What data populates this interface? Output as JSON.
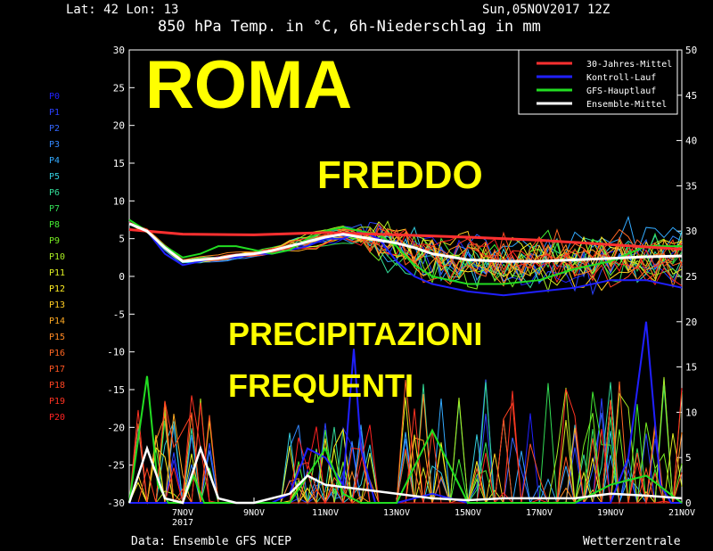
{
  "header": {
    "coords": "Lat: 42 Lon: 13",
    "title": "850 hPa Temp. in °C, 6h-Niederschlag in mm",
    "run": "Sun,05NOV2017 12Z"
  },
  "overlay": {
    "city": "ROMA",
    "cold": "FREDDO",
    "precip_line1": "PRECIPITAZIONI",
    "precip_line2": "FREQUENTI"
  },
  "footer": {
    "source": "Data: Ensemble GFS NCEP",
    "brand": "Wetterzentrale"
  },
  "members": [
    {
      "label": "P0",
      "color": "#2020ff"
    },
    {
      "label": "P1",
      "color": "#2a40ff"
    },
    {
      "label": "P2",
      "color": "#3366ff"
    },
    {
      "label": "P3",
      "color": "#3388ff"
    },
    {
      "label": "P4",
      "color": "#33aaff"
    },
    {
      "label": "P5",
      "color": "#33ccdd"
    },
    {
      "label": "P6",
      "color": "#33dd99"
    },
    {
      "label": "P7",
      "color": "#33dd55"
    },
    {
      "label": "P8",
      "color": "#44ee33"
    },
    {
      "label": "P9",
      "color": "#77ee22"
    },
    {
      "label": "P10",
      "color": "#aaee22"
    },
    {
      "label": "P11",
      "color": "#ddee22"
    },
    {
      "label": "P12",
      "color": "#ffee22"
    },
    {
      "label": "P13",
      "color": "#ffcc22"
    },
    {
      "label": "P14",
      "color": "#ffaa22"
    },
    {
      "label": "P15",
      "color": "#ff8822"
    },
    {
      "label": "P16",
      "color": "#ff6622"
    },
    {
      "label": "P17",
      "color": "#ff5522"
    },
    {
      "label": "P18",
      "color": "#ff4422"
    },
    {
      "label": "P19",
      "color": "#ff3322"
    },
    {
      "label": "P20",
      "color": "#ff2222"
    }
  ],
  "chart_data": {
    "type": "line",
    "x_ticks": [
      "7NOV\n2017",
      "9NOV",
      "11NOV",
      "13NOV",
      "15NOV",
      "17NOV",
      "19NOV",
      "21NOV"
    ],
    "x_days_range": [
      5.5,
      21.0
    ],
    "ylim_left": [
      -30,
      30
    ],
    "yticks_left": [
      30,
      25,
      20,
      15,
      10,
      5,
      0,
      -5,
      -10,
      -15,
      -20,
      -25,
      -30
    ],
    "ylim_right": [
      0,
      50
    ],
    "yticks_right": [
      50,
      45,
      40,
      35,
      30,
      25,
      20,
      15,
      10,
      5,
      0
    ],
    "legend": [
      {
        "name": "30-Jahres-Mittel",
        "color": "#ff3030"
      },
      {
        "name": "Kontroll-Lauf",
        "color": "#2020ff"
      },
      {
        "name": "GFS-Hauptlauf",
        "color": "#22dd22"
      },
      {
        "name": "Ensemble-Mittel",
        "color": "#ffffff"
      }
    ],
    "climate_mean": {
      "x": [
        5.5,
        7,
        9,
        11,
        13,
        15,
        17,
        19,
        21
      ],
      "y": [
        6.2,
        5.6,
        5.5,
        5.8,
        5.5,
        5.2,
        4.8,
        4.2,
        3.6
      ]
    },
    "ensemble_mean": {
      "x": [
        5.5,
        6,
        6.5,
        7,
        7.5,
        8,
        8.5,
        9,
        9.5,
        10,
        10.5,
        11,
        11.5,
        12,
        12.5,
        13,
        13.5,
        14,
        14.5,
        15,
        16,
        17,
        18,
        19,
        20,
        21
      ],
      "y": [
        7,
        6,
        3.8,
        2,
        2.2,
        2.4,
        2.8,
        3,
        3.4,
        4,
        4.6,
        5.2,
        5.6,
        5.2,
        4.8,
        4.4,
        3.8,
        3,
        2.6,
        2.2,
        2,
        2,
        2.2,
        2.4,
        2.6,
        2.7
      ]
    },
    "control_run": {
      "x": [
        5.5,
        6,
        6.5,
        7,
        7.5,
        8,
        8.5,
        9,
        9.5,
        10,
        10.5,
        11,
        11.5,
        12,
        12.5,
        13,
        13.5,
        14,
        15,
        16,
        17,
        18,
        19,
        20,
        21
      ],
      "y": [
        7,
        6,
        3,
        1.5,
        2,
        2.5,
        2.5,
        3,
        3,
        3.5,
        4,
        5,
        5,
        6,
        5,
        2,
        0,
        -1,
        -2,
        -2.5,
        -2,
        -1.5,
        -0.5,
        -0.5,
        -1.5
      ]
    },
    "main_run": {
      "x": [
        5.5,
        6,
        6.5,
        7,
        7.5,
        8,
        8.5,
        9,
        9.5,
        10,
        10.5,
        11,
        11.5,
        12,
        12.5,
        13,
        13.5,
        14,
        15,
        16,
        17,
        18,
        19,
        20,
        21
      ],
      "y": [
        7.5,
        6,
        4,
        2.5,
        3,
        4,
        4,
        3.5,
        3,
        3.5,
        5,
        6,
        6.5,
        6,
        5.5,
        4,
        1.5,
        0,
        -1,
        -1,
        -0.5,
        1,
        2,
        4,
        4
      ]
    },
    "ensemble_mean_precip": {
      "x": [
        5.5,
        6,
        6.5,
        7,
        7.5,
        8,
        8.5,
        9,
        10,
        10.5,
        11,
        12,
        13,
        14,
        15,
        16,
        17,
        18,
        19,
        20,
        21
      ],
      "y": [
        0,
        6,
        0.5,
        0,
        6,
        0.5,
        0,
        0,
        1,
        3,
        2,
        1.5,
        1,
        0.5,
        0.3,
        0.5,
        0.5,
        0.5,
        1,
        0.8,
        0.5
      ]
    },
    "main_run_precip": {
      "x": [
        5.5,
        6,
        6.3,
        6.6,
        7,
        7.3,
        7.6,
        8,
        8.5,
        9,
        10,
        10.5,
        11,
        11.5,
        12,
        13,
        14,
        15,
        16,
        17,
        18,
        19,
        20,
        21
      ],
      "y": [
        0,
        14,
        2,
        0,
        0,
        3,
        0,
        0,
        0,
        0,
        0,
        3,
        6,
        1,
        0,
        0,
        8,
        0,
        0,
        0,
        0,
        2,
        3,
        0
      ]
    },
    "control_run_precip": {
      "x": [
        5.5,
        9.5,
        10,
        10.5,
        11,
        11.5,
        11.8,
        12,
        12.4,
        13,
        14,
        15,
        16,
        17,
        18,
        19,
        19.5,
        20,
        20.4,
        20.7,
        21
      ],
      "y": [
        0,
        0,
        1,
        6,
        5,
        2,
        17,
        6,
        0,
        0,
        1,
        0,
        0,
        0,
        0,
        0,
        5,
        20,
        2,
        0,
        0
      ]
    }
  }
}
